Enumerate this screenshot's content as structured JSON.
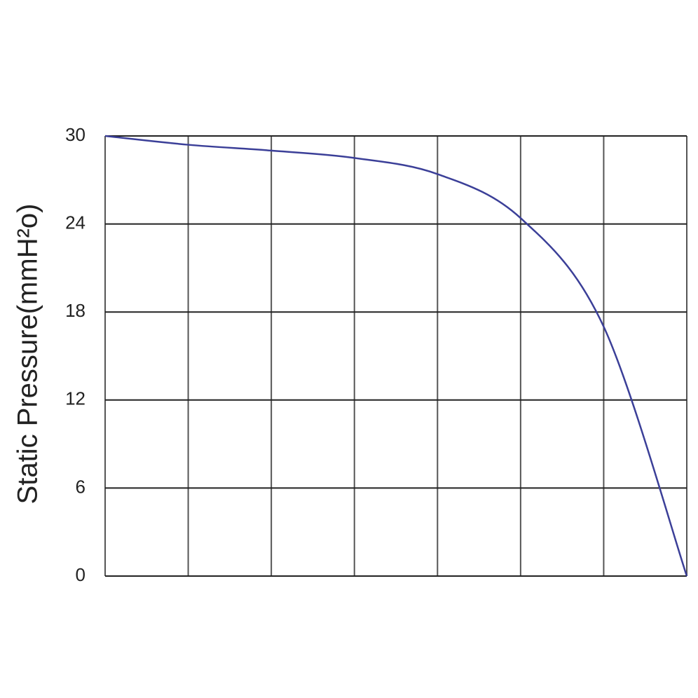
{
  "chart_data": {
    "type": "line",
    "y_label": "Static Pressure(mmH²o)",
    "categories": [
      null,
      null,
      null,
      null,
      null,
      null,
      null,
      null
    ],
    "values": [
      30,
      29.4,
      29.0,
      28.5,
      27.4,
      24.4,
      17.0,
      0
    ],
    "color": "#3b3f98",
    "ylim": [
      0,
      30
    ],
    "yticks": [
      0,
      6,
      12,
      18,
      24,
      30
    ],
    "grid": true
  }
}
